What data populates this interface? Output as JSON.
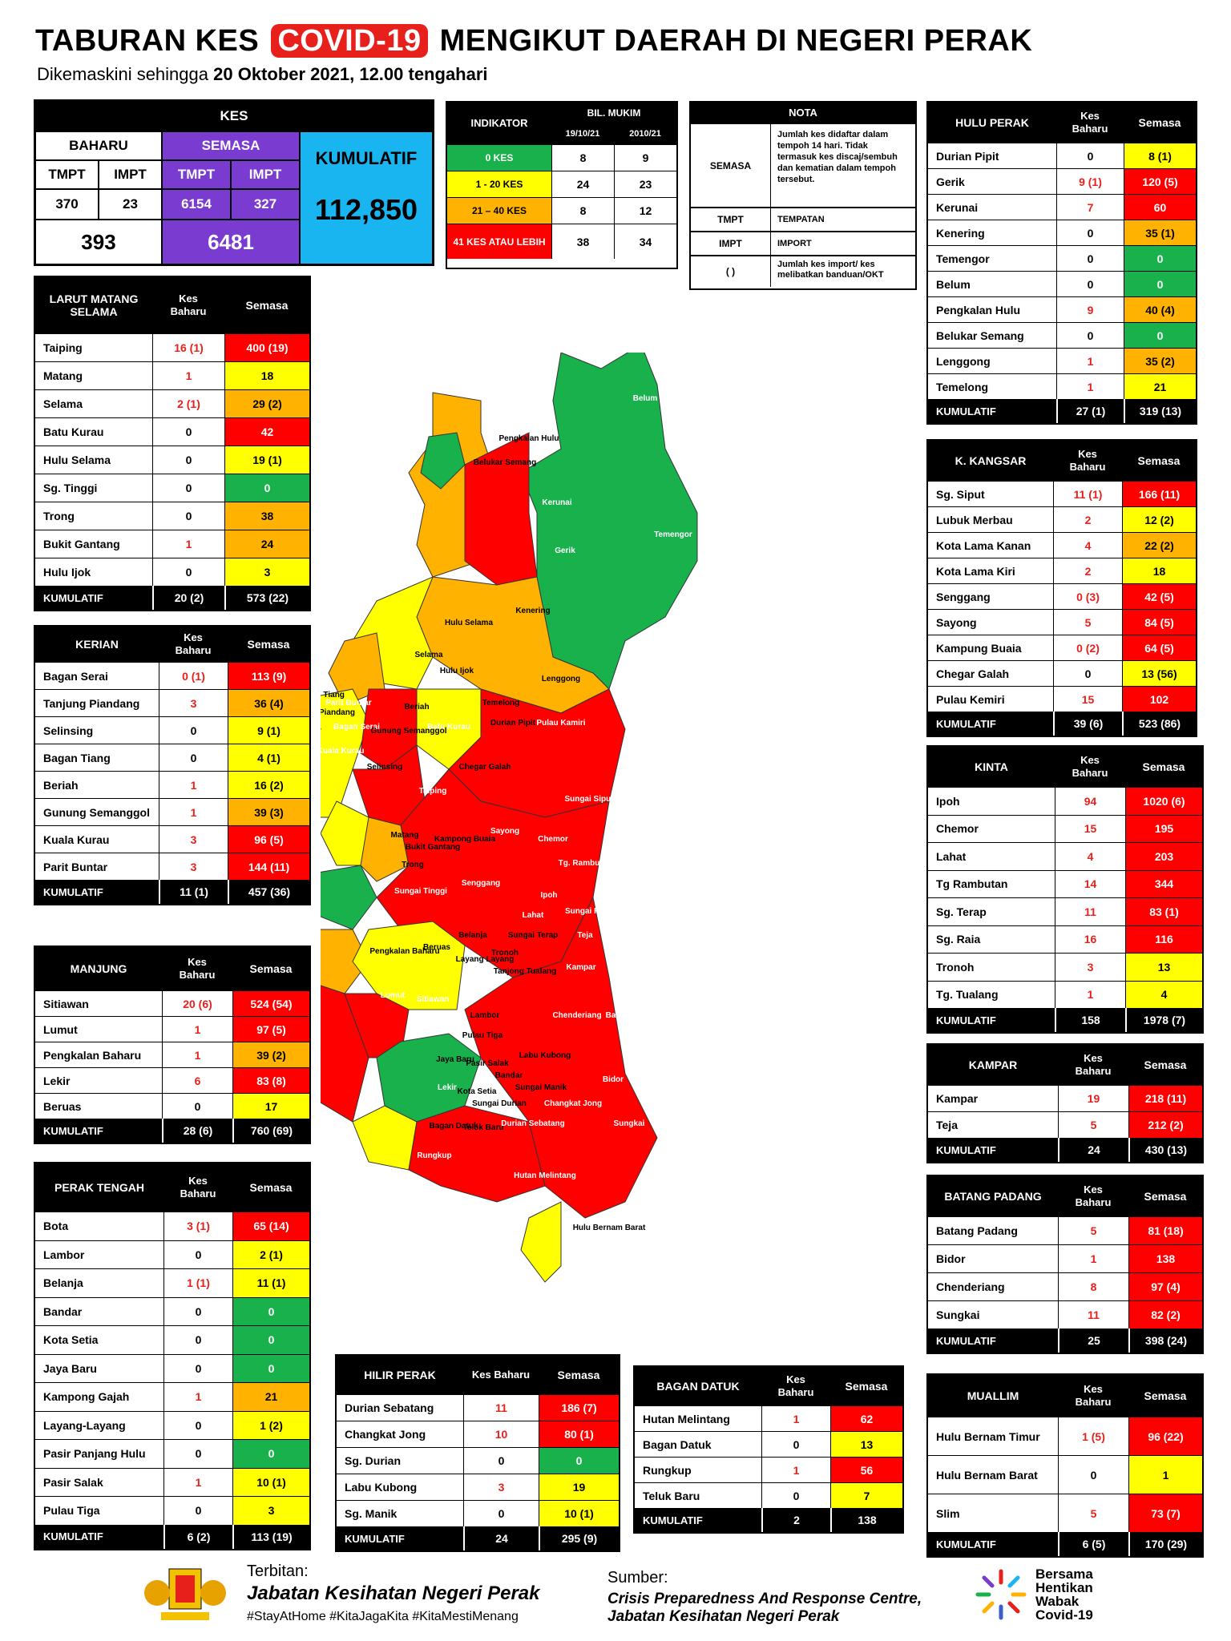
{
  "title": {
    "pre": "TABURAN KES",
    "highlight": "COVID-19",
    "post": "MENGIKUT DAERAH DI NEGERI PERAK"
  },
  "subtitle": {
    "pre": "Dikemaskini sehingga",
    "date": "20 Oktober 2021, 12.00 tengahari"
  },
  "summary": {
    "kes": "KES",
    "baharu": "BAHARU",
    "semasa": "SEMASA",
    "tmpt": "TMPT",
    "impt": "IMPT",
    "baharu_tmpt": "370",
    "baharu_impt": "23",
    "semasa_tmpt": "6154",
    "semasa_impt": "327",
    "baharu_total": "393",
    "semasa_total": "6481",
    "kumulatif_label": "KUMULATIF",
    "kumulatif": "112,850"
  },
  "indikator": {
    "title": "INDIKATOR",
    "bil": "BIL. MUKIM",
    "d1": "19/10/21",
    "d2": "2010/21",
    "rows": [
      {
        "label": "0 KES",
        "a": "8",
        "b": "9",
        "c": "#18b14c"
      },
      {
        "label": "1 - 20 KES",
        "a": "24",
        "b": "23",
        "c": "#ffff00"
      },
      {
        "label": "21 – 40 KES",
        "a": "8",
        "b": "12",
        "c": "#ffb300"
      },
      {
        "label": "41 KES ATAU LEBIH",
        "a": "38",
        "b": "34",
        "c": "#ff0000"
      }
    ]
  },
  "nota": {
    "title": "NOTA",
    "semasa": "SEMASA",
    "semasa_desc": "Jumlah kes didaftar dalam tempoh 14 hari. Tidak termasuk kes discaj/sembuh dan kematian dalam tempoh tersebut.",
    "tmpt": "TMPT",
    "tmpt_desc": "TEMPATAN",
    "impt": "IMPT",
    "impt_desc": "IMPORT",
    "paren": "(   )",
    "paren_desc": "Jumlah kes import/ kes melibatkan banduan/OKT"
  },
  "cols": {
    "kb": "Kes Baharu",
    "sm": "Semasa",
    "total": "KUMULATIF"
  },
  "tables": [
    {
      "id": "larut",
      "title": "LARUT MATANG SELAMA",
      "rows": [
        [
          "Taiping",
          "16 (1)",
          "400 (19)",
          "r"
        ],
        [
          "Matang",
          "1",
          "18",
          "y"
        ],
        [
          "Selama",
          "2 (1)",
          "29 (2)",
          "o"
        ],
        [
          "Batu Kurau",
          "0",
          "42",
          "r"
        ],
        [
          "Hulu Selama",
          "0",
          "19 (1)",
          "y"
        ],
        [
          "Sg. Tinggi",
          "0",
          "0",
          "g"
        ],
        [
          "Trong",
          "0",
          "38",
          "o"
        ],
        [
          "Bukit Gantang",
          "1",
          "24",
          "o"
        ],
        [
          "Hulu Ijok",
          "0",
          "3",
          "y"
        ]
      ],
      "total": [
        "20 (2)",
        "573 (22)"
      ]
    },
    {
      "id": "kerian",
      "title": "KERIAN",
      "rows": [
        [
          "Bagan Serai",
          "0 (1)",
          "113 (9)",
          "r"
        ],
        [
          "Tanjung Piandang",
          "3",
          "36 (4)",
          "o"
        ],
        [
          "Selinsing",
          "0",
          "9 (1)",
          "y"
        ],
        [
          "Bagan Tiang",
          "0",
          "4 (1)",
          "y"
        ],
        [
          "Beriah",
          "1",
          "16 (2)",
          "y"
        ],
        [
          "Gunung Semanggol",
          "1",
          "39 (3)",
          "o"
        ],
        [
          "Kuala Kurau",
          "3",
          "96 (5)",
          "r"
        ],
        [
          "Parit Buntar",
          "3",
          "144 (11)",
          "r"
        ]
      ],
      "total": [
        "11 (1)",
        "457 (36)"
      ]
    },
    {
      "id": "manjung",
      "title": "MANJUNG",
      "rows": [
        [
          "Sitiawan",
          "20 (6)",
          "524 (54)",
          "r"
        ],
        [
          "Lumut",
          "1",
          "97 (5)",
          "r"
        ],
        [
          "Pengkalan Baharu",
          "1",
          "39 (2)",
          "o"
        ],
        [
          "Lekir",
          "6",
          "83 (8)",
          "r"
        ],
        [
          "Beruas",
          "0",
          "17",
          "y"
        ]
      ],
      "total": [
        "28 (6)",
        "760 (69)"
      ]
    },
    {
      "id": "perak_tengah",
      "title": "PERAK TENGAH",
      "rows": [
        [
          "Bota",
          "3 (1)",
          "65 (14)",
          "r"
        ],
        [
          "Lambor",
          "0",
          "2 (1)",
          "y"
        ],
        [
          "Belanja",
          "1 (1)",
          "11 (1)",
          "y"
        ],
        [
          "Bandar",
          "0",
          "0",
          "g"
        ],
        [
          "Kota Setia",
          "0",
          "0",
          "g"
        ],
        [
          "Jaya Baru",
          "0",
          "0",
          "g"
        ],
        [
          "Kampong Gajah",
          "1",
          "21",
          "o"
        ],
        [
          "Layang-Layang",
          "0",
          "1 (2)",
          "y"
        ],
        [
          "Pasir Panjang Hulu",
          "0",
          "0",
          "g"
        ],
        [
          "Pasir Salak",
          "1",
          "10 (1)",
          "y"
        ],
        [
          "Pulau Tiga",
          "0",
          "3",
          "y"
        ]
      ],
      "total": [
        "6 (2)",
        "113 (19)"
      ]
    },
    {
      "id": "hilir",
      "title": "HILIR PERAK",
      "rows": [
        [
          "Durian Sebatang",
          "11",
          "186 (7)",
          "r"
        ],
        [
          "Changkat Jong",
          "10",
          "80 (1)",
          "r"
        ],
        [
          "Sg. Durian",
          "0",
          "0",
          "g"
        ],
        [
          "Labu Kubong",
          "3",
          "19",
          "y"
        ],
        [
          "Sg. Manik",
          "0",
          "10 (1)",
          "y"
        ]
      ],
      "total": [
        "24",
        "295 (9)"
      ]
    },
    {
      "id": "bagan",
      "title": "BAGAN DATUK",
      "rows": [
        [
          "Hutan Melintang",
          "1",
          "62",
          "r"
        ],
        [
          "Bagan Datuk",
          "0",
          "13",
          "y"
        ],
        [
          "Rungkup",
          "1",
          "56",
          "r"
        ],
        [
          "Teluk Baru",
          "0",
          "7",
          "y"
        ]
      ],
      "total": [
        "2",
        "138"
      ]
    },
    {
      "id": "hulu",
      "title": "HULU PERAK",
      "rows": [
        [
          "Durian Pipit",
          "0",
          "8 (1)",
          "y"
        ],
        [
          "Gerik",
          "9 (1)",
          "120 (5)",
          "r"
        ],
        [
          "Kerunai",
          "7",
          "60",
          "r"
        ],
        [
          "Kenering",
          "0",
          "35 (1)",
          "o"
        ],
        [
          "Temengor",
          "0",
          "0",
          "g"
        ],
        [
          "Belum",
          "0",
          "0",
          "g"
        ],
        [
          "Pengkalan Hulu",
          "9",
          "40 (4)",
          "o"
        ],
        [
          "Belukar Semang",
          "0",
          "0",
          "g"
        ],
        [
          "Lenggong",
          "1",
          "35 (2)",
          "o"
        ],
        [
          "Temelong",
          "1",
          "21",
          "y"
        ]
      ],
      "total": [
        "27 (1)",
        "319 (13)"
      ]
    },
    {
      "id": "kangsar",
      "title": "K. KANGSAR",
      "rows": [
        [
          "Sg. Siput",
          "11 (1)",
          "166 (11)",
          "r"
        ],
        [
          "Lubuk Merbau",
          "2",
          "12 (2)",
          "y"
        ],
        [
          "Kota Lama Kanan",
          "4",
          "22 (2)",
          "o"
        ],
        [
          "Kota Lama Kiri",
          "2",
          "18",
          "y"
        ],
        [
          "Senggang",
          "0 (3)",
          "42 (5)",
          "r"
        ],
        [
          "Sayong",
          "5",
          "84 (5)",
          "r"
        ],
        [
          "Kampung Buaia",
          "0 (2)",
          "64 (5)",
          "r"
        ],
        [
          "Chegar Galah",
          "0",
          "13 (56)",
          "y"
        ],
        [
          "Pulau Kemiri",
          "15",
          "102",
          "r"
        ]
      ],
      "total": [
        "39 (6)",
        "523 (86)"
      ]
    },
    {
      "id": "kinta",
      "title": "KINTA",
      "rows": [
        [
          "Ipoh",
          "94",
          "1020 (6)",
          "r"
        ],
        [
          "Chemor",
          "15",
          "195",
          "r"
        ],
        [
          "Lahat",
          "4",
          "203",
          "r"
        ],
        [
          "Tg Rambutan",
          "14",
          "344",
          "r"
        ],
        [
          "Sg. Terap",
          "11",
          "83 (1)",
          "r"
        ],
        [
          "Sg. Raia",
          "16",
          "116",
          "r"
        ],
        [
          "Tronoh",
          "3",
          "13",
          "y"
        ],
        [
          "Tg. Tualang",
          "1",
          "4",
          "y"
        ]
      ],
      "total": [
        "158",
        "1978 (7)"
      ]
    },
    {
      "id": "kampar",
      "title": "KAMPAR",
      "rows": [
        [
          "Kampar",
          "19",
          "218 (11)",
          "r"
        ],
        [
          "Teja",
          "5",
          "212 (2)",
          "r"
        ]
      ],
      "total": [
        "24",
        "430 (13)"
      ]
    },
    {
      "id": "batang",
      "title": "BATANG PADANG",
      "rows": [
        [
          "Batang Padang",
          "5",
          "81 (18)",
          "r"
        ],
        [
          "Bidor",
          "1",
          "138",
          "r"
        ],
        [
          "Chenderiang",
          "8",
          "97 (4)",
          "r"
        ],
        [
          "Sungkai",
          "11",
          "82 (2)",
          "r"
        ]
      ],
      "total": [
        "25",
        "398 (24)"
      ]
    },
    {
      "id": "muallim",
      "title": "MUALLIM",
      "rows": [
        [
          "Hulu Bernam Timur",
          "1 (5)",
          "96 (22)",
          "r"
        ],
        [
          "Hulu Bernam Barat",
          "0",
          "1",
          "y"
        ],
        [
          "Slim",
          "5",
          "73 (7)",
          "r"
        ]
      ],
      "total": [
        "6 (5)",
        "170 (29)"
      ]
    }
  ],
  "map_labels": [
    "Belum",
    "Temengor",
    "Pengkalan Hulu",
    "Belukar Semang",
    "Kerunai",
    "Gerik",
    "Kenering",
    "Hulu Selama",
    "Selama",
    "Hulu Ijok",
    "Lenggong",
    "Temelong",
    "Durian Pipit",
    "Pulau Kamiri",
    "Batu Kurau",
    "Beriah",
    "Bagan Serai",
    "Kuala Kurau",
    "Parit Buntar",
    "Bagan Tiang",
    "Tanjung Piandang",
    "Gunung Semanggol",
    "Selinsing",
    "Chegar Galah",
    "Taiping",
    "Matang",
    "Sungai Siput",
    "Bukit Gantang",
    "Trong",
    "Sayong",
    "Kampong Buaia",
    "Chemor",
    "Tg. Rambutan",
    "Senggang",
    "Ipoh",
    "Sungai Raya",
    "Sungai Tinggi",
    "Lahat",
    "Sungai Terap",
    "Teja",
    "Belanja",
    "Beruas",
    "Pengkalan Baharu",
    "Layang Layang",
    "Tronoh",
    "Tanjong Tualang",
    "Kampar",
    "Lumut",
    "Sitiawan",
    "Bota",
    "Lambor",
    "Pulau Tiga",
    "Chenderiang",
    "Batang Padang",
    "Jaya Baru",
    "Pasir Salak",
    "Bandar",
    "Labu Kubong",
    "Sungai Manik",
    "Bidor",
    "Lekir",
    "Kota Setia",
    "Sungai Durian",
    "Changkat Jong",
    "Bagan Datuk",
    "Teluk Baru",
    "Durian Sebatang",
    "Sungkai",
    "Rungkup",
    "Slim",
    "Hutan Melintang",
    "Hulu Bernam Timur",
    "Hulu Bernam Barat"
  ],
  "footer": {
    "terbitan": "Terbitan:",
    "jabatan": "Jabatan Kesihatan Negeri Perak",
    "tags": "#StayAtHome #KitaJagaKita #KitaMestiMenang",
    "sumber": "Sumber:",
    "src1": "Crisis Preparedness And Response Centre,",
    "src2": "Jabatan Kesihatan Negeri Perak",
    "logo": "Bersama Hentikan Wabak Covid-19"
  }
}
